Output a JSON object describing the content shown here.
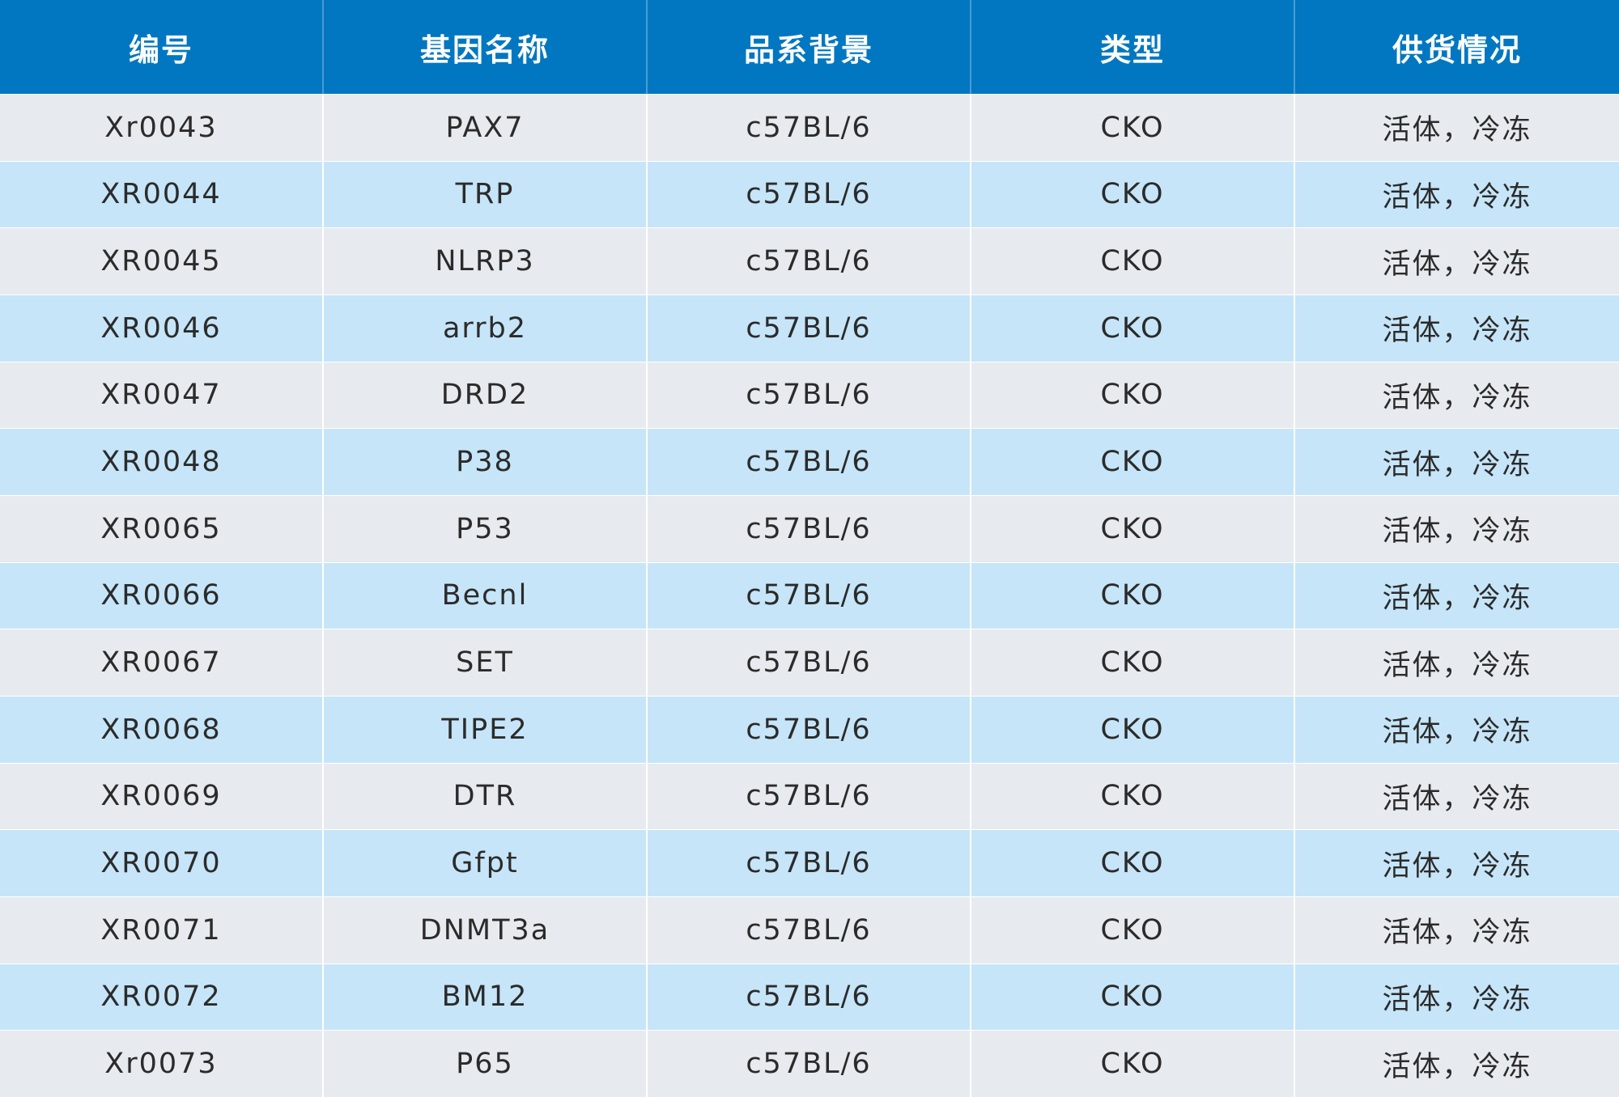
{
  "table": {
    "headers": [
      "编号",
      "基因名称",
      "品系背景",
      "类型",
      "供货情况"
    ],
    "rows": [
      [
        "Xr0043",
        "PAX7",
        "c57BL/6",
        "CKO",
        "活体，冷冻"
      ],
      [
        "XR0044",
        "TRP",
        "c57BL/6",
        "CKO",
        "活体，冷冻"
      ],
      [
        "XR0045",
        "NLRP3",
        "c57BL/6",
        "CKO",
        "活体，冷冻"
      ],
      [
        "XR0046",
        "arrb2",
        "c57BL/6",
        "CKO",
        "活体，冷冻"
      ],
      [
        "XR0047",
        "DRD2",
        "c57BL/6",
        "CKO",
        "活体，冷冻"
      ],
      [
        "XR0048",
        "P38",
        "c57BL/6",
        "CKO",
        "活体，冷冻"
      ],
      [
        "XR0065",
        "P53",
        "c57BL/6",
        "CKO",
        "活体，冷冻"
      ],
      [
        "XR0066",
        "Becnl",
        "c57BL/6",
        "CKO",
        "活体，冷冻"
      ],
      [
        "XR0067",
        "SET",
        "c57BL/6",
        "CKO",
        "活体，冷冻"
      ],
      [
        "XR0068",
        "TIPE2",
        "c57BL/6",
        "CKO",
        "活体，冷冻"
      ],
      [
        "XR0069",
        "DTR",
        "c57BL/6",
        "CKO",
        "活体，冷冻"
      ],
      [
        "XR0070",
        "Gfpt",
        "c57BL/6",
        "CKO",
        "活体，冷冻"
      ],
      [
        "XR0071",
        "DNMT3a",
        "c57BL/6",
        "CKO",
        "活体，冷冻"
      ],
      [
        "XR0072",
        "BM12",
        "c57BL/6",
        "CKO",
        "活体，冷冻"
      ],
      [
        "Xr0073",
        "P65",
        "c57BL/6",
        "CKO",
        "活体，冷冻"
      ]
    ]
  },
  "colors": {
    "header_bg": "#0177c1",
    "row_odd_bg": "#e7ebef",
    "row_even_bg": "#c6e5f8",
    "text": "#2b2b2b"
  }
}
